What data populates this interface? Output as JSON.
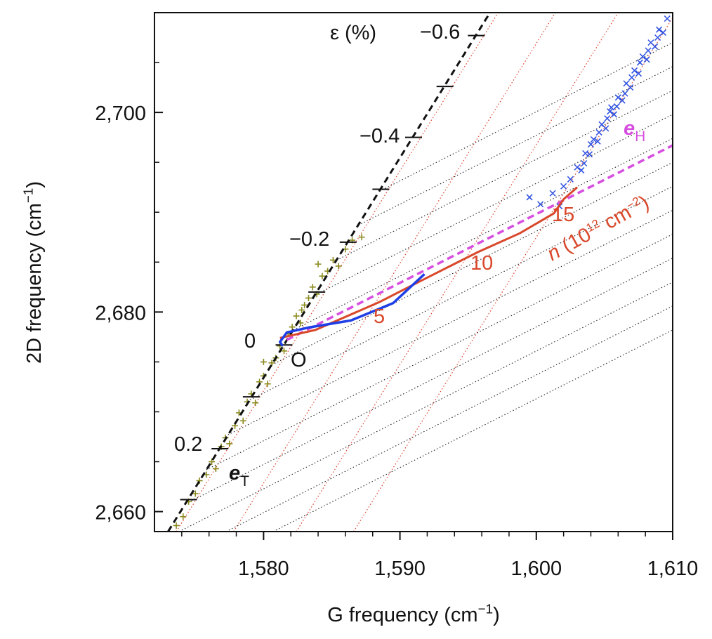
{
  "chart_data": {
    "type": "scatter",
    "xlabel": [
      "G frequency (cm",
      "−1",
      ")"
    ],
    "ylabel": [
      "2D frequency (cm",
      "−1",
      ")"
    ],
    "xlim": [
      1572,
      1610
    ],
    "ylim": [
      2658,
      2710
    ],
    "xticks": [
      {
        "value": 1580,
        "label": "1,580"
      },
      {
        "value": 1590,
        "label": "1,590"
      },
      {
        "value": 1600,
        "label": "1,600"
      },
      {
        "value": 1610,
        "label": "1,610"
      }
    ],
    "xminorticks": [
      1574,
      1576,
      1578,
      1582,
      1584,
      1586,
      1588,
      1592,
      1594,
      1596,
      1598,
      1602,
      1604,
      1606,
      1608
    ],
    "yticks": [
      {
        "value": 2660,
        "label": "2,660"
      },
      {
        "value": 2680,
        "label": "2,680"
      },
      {
        "value": 2700,
        "label": "2,700"
      }
    ],
    "yminorticks": [
      2665,
      2670,
      2675,
      2685,
      2690,
      2695,
      2705,
      2710
    ],
    "strain_grid": {
      "color": "#e0402a",
      "lines": [
        {
          "x": [
            1573.6,
            1597.2
          ],
          "y": [
            2658,
            2710
          ]
        },
        {
          "x": [
            1577.8,
            1601.4
          ],
          "y": [
            2658,
            2710
          ]
        },
        {
          "x": [
            1582.4,
            1606.0
          ],
          "y": [
            2658,
            2710
          ]
        },
        {
          "x": [
            1586.6,
            1610.0
          ],
          "y": [
            2658,
            2709.5
          ]
        }
      ]
    },
    "doping_grid": {
      "color": "#222222",
      "lines": [
        {
          "x": [
            1588.5,
            1610
          ],
          "y": [
            2692.1,
            2707.0
          ]
        },
        {
          "x": [
            1586.95,
            1610
          ],
          "y": [
            2688.7,
            2704.6
          ]
        },
        {
          "x": [
            1585.36,
            1610
          ],
          "y": [
            2685.2,
            2702.2
          ]
        },
        {
          "x": [
            1583.77,
            1610
          ],
          "y": [
            2681.7,
            2699.8
          ]
        },
        {
          "x": [
            1582.19,
            1610
          ],
          "y": [
            2678.2,
            2697.4
          ]
        },
        {
          "x": [
            1580.6,
            1610
          ],
          "y": [
            2674.7,
            2695.0
          ]
        },
        {
          "x": [
            1579.0,
            1610
          ],
          "y": [
            2671.2,
            2692.6
          ]
        },
        {
          "x": [
            1577.4,
            1610
          ],
          "y": [
            2667.7,
            2690.2
          ]
        },
        {
          "x": [
            1575.8,
            1610
          ],
          "y": [
            2664.2,
            2687.8
          ]
        },
        {
          "x": [
            1574.3,
            1610
          ],
          "y": [
            2660.8,
            2685.4
          ]
        },
        {
          "x": [
            1573.8,
            1610
          ],
          "y": [
            2658,
            2683.0
          ]
        },
        {
          "x": [
            1577.25,
            1610
          ],
          "y": [
            2658,
            2680.6
          ]
        },
        {
          "x": [
            1580.7,
            1610
          ],
          "y": [
            2658,
            2678.2
          ]
        }
      ]
    },
    "olive_points": {
      "color": "#8a8a1e",
      "x": [
        1573.6,
        1574.1,
        1574.5,
        1575.0,
        1575.3,
        1575.8,
        1576.2,
        1576.5,
        1576.9,
        1577.2,
        1577.5,
        1577.9,
        1578.2,
        1578.5,
        1578.8,
        1579.1,
        1579.4,
        1579.7,
        1580.0,
        1580.3,
        1580.6,
        1580.9,
        1581.2,
        1581.5,
        1581.8,
        1582.1,
        1582.4,
        1582.7,
        1583.0,
        1583.3,
        1583.6,
        1583.9,
        1584.3,
        1584.7,
        1585.1,
        1585.5,
        1586.0,
        1586.5,
        1587.2,
        1584.0,
        1582.8,
        1580.0
      ],
      "y": [
        2658.6,
        2659.5,
        2661.0,
        2661.8,
        2663.1,
        2663.7,
        2665.0,
        2664.3,
        2666.5,
        2667.4,
        2666.8,
        2668.6,
        2669.9,
        2669.1,
        2671.0,
        2671.8,
        2670.9,
        2673.0,
        2673.6,
        2672.8,
        2674.9,
        2675.4,
        2676.6,
        2676.1,
        2677.8,
        2678.5,
        2679.6,
        2678.9,
        2680.7,
        2681.4,
        2682.5,
        2681.8,
        2683.6,
        2684.1,
        2685.2,
        2684.6,
        2686.3,
        2687.2,
        2687.5,
        2684.8,
        2680.2,
        2675.0
      ]
    },
    "blue_points": {
      "color": "#2a4de0",
      "x": [
        1599.5,
        1600.3,
        1601.2,
        1601.7,
        1602.0,
        1602.5,
        1603.0,
        1603.3,
        1603.6,
        1603.9,
        1604.2,
        1604.5,
        1604.8,
        1605.1,
        1605.4,
        1605.7,
        1606.0,
        1606.3,
        1606.6,
        1606.9,
        1607.2,
        1607.5,
        1607.8,
        1608.1,
        1608.4,
        1608.7,
        1609.0,
        1609.3,
        1609.6,
        1604.0,
        1604.6,
        1605.2,
        1605.9,
        1606.5,
        1607.0,
        1607.6,
        1608.2,
        1608.9,
        1603.5,
        1605.5
      ],
      "y": [
        2691.5,
        2690.8,
        2691.9,
        2690.6,
        2692.6,
        2693.3,
        2694.5,
        2694.2,
        2695.9,
        2695.8,
        2697.3,
        2697.1,
        2698.8,
        2698.4,
        2700.1,
        2699.8,
        2701.5,
        2701.2,
        2702.9,
        2702.5,
        2704.2,
        2703.9,
        2705.6,
        2705.3,
        2707.0,
        2706.6,
        2708.3,
        2708.0,
        2709.4,
        2696.8,
        2698.0,
        2699.4,
        2700.6,
        2701.9,
        2703.5,
        2705.0,
        2706.2,
        2707.5,
        2694.9,
        2700.5
      ]
    },
    "strain_line": {
      "color": "#111111",
      "x": [
        1573.0,
        1596.6
      ],
      "y": [
        2658,
        2710
      ]
    },
    "strain_ticks": {
      "color": "#111111",
      "x": [
        1595.6,
        1593.3,
        1591.0,
        1588.6,
        1586.2,
        1583.9,
        1581.5,
        1579.1,
        1576.8,
        1574.5
      ],
      "y": [
        2707.7,
        2702.6,
        2697.5,
        2692.3,
        2687.0,
        2682.0,
        2676.7,
        2671.5,
        2666.3,
        2661.2
      ]
    },
    "doping_line": {
      "color": "#d64fe0",
      "x": [
        1581.7,
        1610
      ],
      "y": [
        2677.2,
        2696.7
      ]
    },
    "doping_data": {
      "color": "#d9482b",
      "x": [
        1581.2,
        1583.8,
        1588.5,
        1591.5,
        1595.7,
        1598.8,
        1601.3,
        1602.0,
        1603.0
      ],
      "y": [
        2677.4,
        2678.2,
        2681.0,
        2683.1,
        2686.0,
        2687.9,
        2689.9,
        2691.3,
        2692.5
      ]
    },
    "blue_curve": {
      "color": "#1f3fe6",
      "x": [
        1581.4,
        1581.2,
        1581.7,
        1583.3,
        1586.4,
        1589.5,
        1591.8
      ],
      "y": [
        2676.6,
        2677.0,
        2677.95,
        2678.45,
        2679.15,
        2680.9,
        2683.8
      ]
    },
    "eps_label": "ε (%)",
    "strain_labels": [
      "−0.6",
      "−0.4",
      "−0.2",
      "0",
      "0.2"
    ],
    "origin_label": "O",
    "eT_label": [
      "e",
      "T"
    ],
    "eH_label": [
      "e",
      "H"
    ],
    "doping_labels": [
      "5",
      "10",
      "15"
    ],
    "n_label": [
      "n",
      " (10",
      "12",
      " cm",
      "−2",
      ")"
    ]
  }
}
